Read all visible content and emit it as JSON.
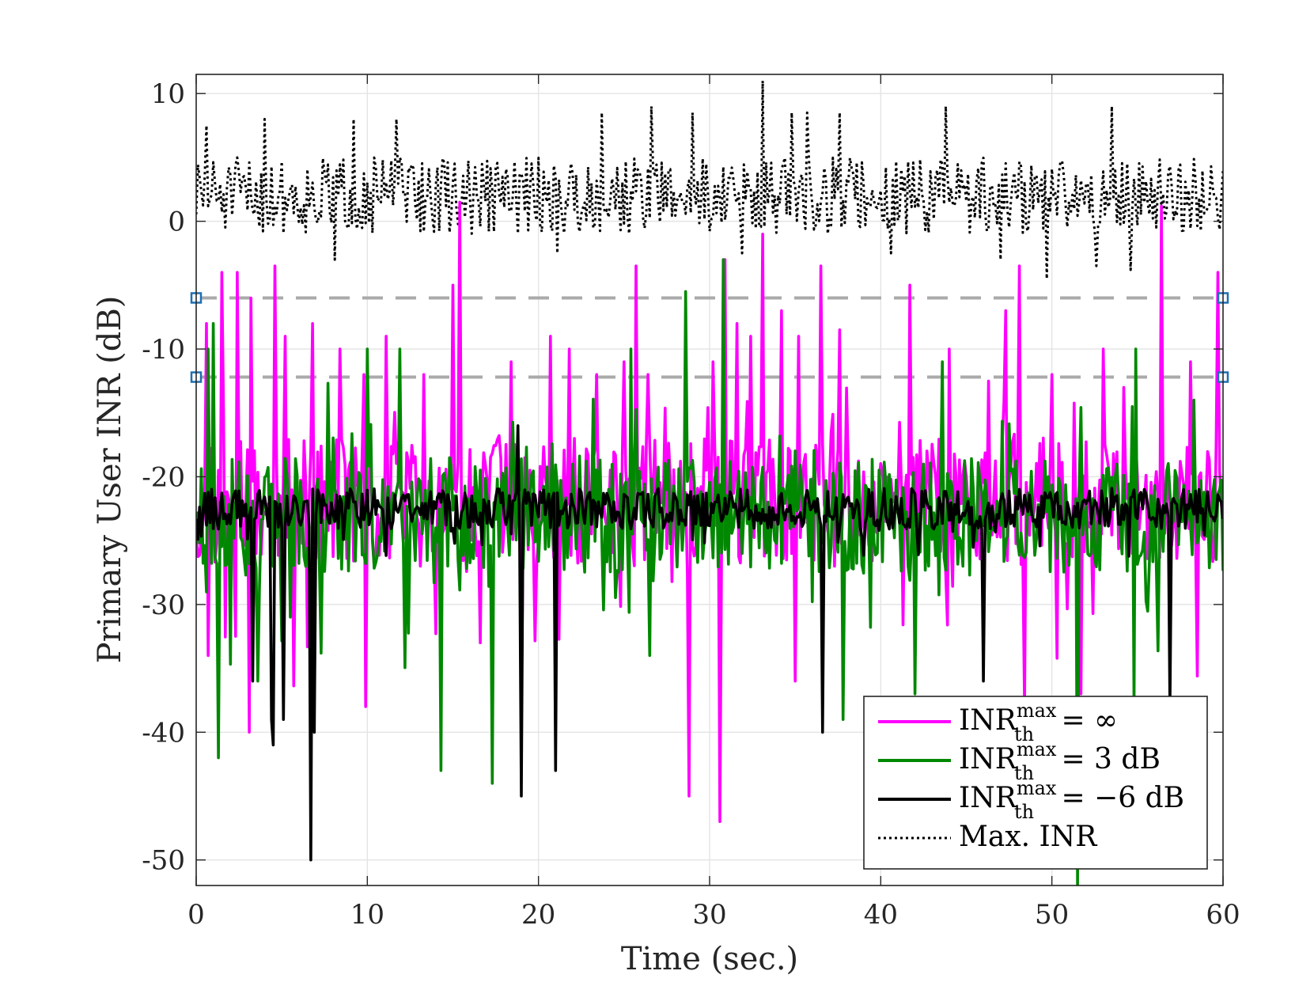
{
  "chart_data": {
    "type": "line",
    "xlabel": "Time (sec.)",
    "ylabel": "Primary User INR (dB)",
    "xlim": [
      0,
      60
    ],
    "ylim": [
      -52,
      11.5
    ],
    "xticks": [
      0,
      10,
      20,
      30,
      40,
      50,
      60
    ],
    "yticks": [
      10,
      0,
      -10,
      -20,
      -30,
      -40,
      -50
    ],
    "xtick_labels": [
      "0",
      "10",
      "20",
      "30",
      "40",
      "50",
      "60"
    ],
    "ytick_labels": [
      "10",
      "0",
      "-10",
      "-20",
      "-30",
      "-40",
      "-50"
    ],
    "grid": true,
    "legend_position": "bottom-right",
    "reference_lines": [
      {
        "y": -6,
        "style": "dashed",
        "color": "#aaaaaa"
      },
      {
        "y": -12.2,
        "style": "dashed",
        "color": "#aaaaaa"
      }
    ],
    "series": [
      {
        "name": "INR_th^max = ∞",
        "legend": {
          "base": "INR",
          "sup": "max",
          "sub": "th",
          "rest": " = ∞"
        },
        "color": "#ff00ff",
        "style": "solid",
        "seed": 11,
        "base": -22,
        "spread": 5,
        "spikes": [
          [
            0.6,
            -8
          ],
          [
            1.5,
            -4
          ],
          [
            2.4,
            -4
          ],
          [
            3.2,
            -6
          ],
          [
            4.6,
            -3.5
          ],
          [
            5.2,
            -9
          ],
          [
            6.8,
            -8
          ],
          [
            8.4,
            -10
          ],
          [
            9.8,
            -12
          ],
          [
            11.1,
            -9
          ],
          [
            13.3,
            -12
          ],
          [
            15.0,
            -5
          ],
          [
            15.4,
            1.5
          ],
          [
            18.4,
            -11
          ],
          [
            20.7,
            -9
          ],
          [
            21.8,
            -10
          ],
          [
            23.4,
            -12
          ],
          [
            25.0,
            -11
          ],
          [
            25.7,
            -3.5
          ],
          [
            26.4,
            -12
          ],
          [
            28.8,
            -16
          ],
          [
            30.2,
            -11
          ],
          [
            30.9,
            -3
          ],
          [
            31.6,
            -8
          ],
          [
            32.4,
            -9
          ],
          [
            33.1,
            -1
          ],
          [
            34.2,
            -7
          ],
          [
            35.2,
            -9
          ],
          [
            36.5,
            -3.5
          ],
          [
            37.6,
            -8.5
          ],
          [
            41.7,
            -5
          ],
          [
            44.0,
            -10
          ],
          [
            47.3,
            -7
          ],
          [
            48.1,
            -3.5
          ],
          [
            50.0,
            -12
          ],
          [
            53.0,
            -10
          ],
          [
            54.2,
            -13
          ],
          [
            56.4,
            1.2
          ],
          [
            58.1,
            -11
          ],
          [
            59.7,
            -4
          ]
        ],
        "dips": [
          [
            0.7,
            -34
          ],
          [
            3.1,
            -40
          ],
          [
            9.9,
            -38
          ],
          [
            16.6,
            -33
          ],
          [
            19.0,
            -40
          ],
          [
            28.8,
            -45
          ],
          [
            30.6,
            -47
          ],
          [
            35.0,
            -36
          ],
          [
            48.4,
            -38
          ],
          [
            51.7,
            -37
          ]
        ]
      },
      {
        "name": "INR_th^max = 3 dB",
        "legend": {
          "base": "INR",
          "sup": "max",
          "sub": "th",
          "rest": " = 3 dB"
        },
        "color": "#008800",
        "style": "solid",
        "seed": 23,
        "base": -23,
        "spread": 4.5,
        "spikes": [
          [
            0.7,
            -10
          ],
          [
            1.0,
            -8
          ],
          [
            10.0,
            -10
          ],
          [
            11.9,
            -10
          ],
          [
            25.4,
            -10
          ],
          [
            28.6,
            -5.5
          ],
          [
            30.8,
            -3
          ],
          [
            43.6,
            -11
          ],
          [
            54.9,
            -10
          ],
          [
            58.3,
            -14
          ]
        ],
        "dips": [
          [
            1.3,
            -42
          ],
          [
            3.6,
            -36
          ],
          [
            14.3,
            -43
          ],
          [
            17.3,
            -44
          ],
          [
            26.5,
            -34
          ],
          [
            37.8,
            -39
          ],
          [
            42.0,
            -37
          ],
          [
            51.5,
            -52
          ],
          [
            54.8,
            -38
          ]
        ]
      },
      {
        "name": "INR_th^max = −6 dB",
        "legend": {
          "base": "INR",
          "sup": "max",
          "sub": "th",
          "rest": " = −6 dB"
        },
        "color": "#000000",
        "style": "solid",
        "seed": 37,
        "base": -22.5,
        "spread": 1.6,
        "spikes": [
          [
            18.8,
            -16
          ]
        ],
        "dips": [
          [
            3.3,
            -36
          ],
          [
            4.4,
            -39
          ],
          [
            4.5,
            -41
          ],
          [
            5.1,
            -39
          ],
          [
            6.7,
            -50
          ],
          [
            6.9,
            -40
          ],
          [
            19.0,
            -45
          ],
          [
            21.0,
            -43
          ],
          [
            36.6,
            -40
          ],
          [
            46.0,
            -36
          ],
          [
            56.9,
            -38
          ]
        ]
      },
      {
        "name": "Max. INR",
        "legend": {
          "base": "Max. INR",
          "sup": "",
          "sub": "",
          "rest": ""
        },
        "color": "#000000",
        "style": "dotted",
        "seed": 51,
        "base": 2,
        "spread": 3,
        "spikes": [
          [
            0.6,
            7.5
          ],
          [
            4.0,
            8
          ],
          [
            9.2,
            8
          ],
          [
            11.7,
            8
          ],
          [
            23.7,
            8.5
          ],
          [
            26.6,
            9
          ],
          [
            29.0,
            8.5
          ],
          [
            33.1,
            11
          ],
          [
            34.8,
            8.5
          ],
          [
            35.7,
            8.5
          ],
          [
            37.6,
            8.5
          ],
          [
            43.8,
            9
          ],
          [
            53.5,
            9
          ]
        ],
        "dips": [
          [
            8.1,
            -3
          ],
          [
            21.1,
            -2.5
          ],
          [
            31.9,
            -2.5
          ],
          [
            40.6,
            -2.5
          ],
          [
            47.0,
            -3
          ],
          [
            49.7,
            -4.5
          ],
          [
            52.6,
            -3.5
          ],
          [
            54.6,
            -3.8
          ]
        ]
      }
    ]
  }
}
